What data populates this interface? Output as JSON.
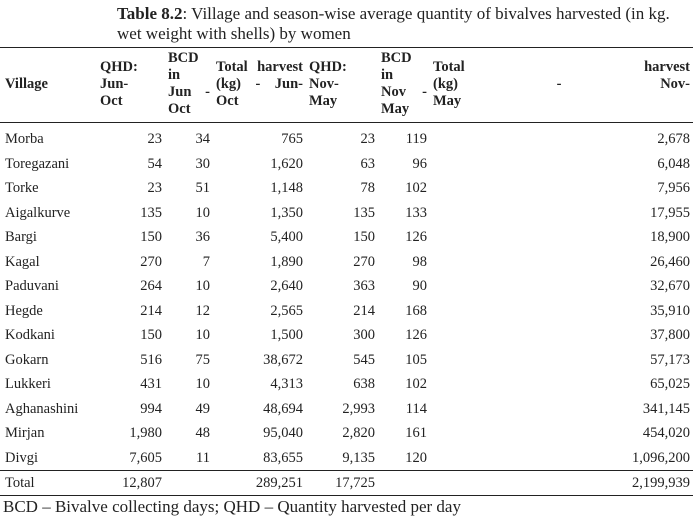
{
  "title": {
    "label": "Table 8.2",
    "text": ": Village and season-wise average quantity of bivalves harvested (in kg. wet weight with shells) by women"
  },
  "table": {
    "headers": [
      [
        "Village"
      ],
      [
        "QHD: Jun-",
        "Oct"
      ],
      [
        "BCD in",
        "Jun -",
        "Oct"
      ],
      [
        "Total harvest",
        "(kg) - Jun-Oct"
      ],
      [
        "QHD: Nov-",
        "May"
      ],
      [
        "BCD in",
        "Nov -",
        "May"
      ],
      [
        "Total harvest",
        "(kg) - Nov-",
        "May"
      ]
    ],
    "rows": [
      [
        "Morba",
        "23",
        "34",
        "765",
        "23",
        "119",
        "2,678"
      ],
      [
        "Toregazani",
        "54",
        "30",
        "1,620",
        "63",
        "96",
        "6,048"
      ],
      [
        "Torke",
        "23",
        "51",
        "1,148",
        "78",
        "102",
        "7,956"
      ],
      [
        "Aigalkurve",
        "135",
        "10",
        "1,350",
        "135",
        "133",
        "17,955"
      ],
      [
        "Bargi",
        "150",
        "36",
        "5,400",
        "150",
        "126",
        "18,900"
      ],
      [
        "Kagal",
        "270",
        "7",
        "1,890",
        "270",
        "98",
        "26,460"
      ],
      [
        "Paduvani",
        "264",
        "10",
        "2,640",
        "363",
        "90",
        "32,670"
      ],
      [
        "Hegde",
        "214",
        "12",
        "2,565",
        "214",
        "168",
        "35,910"
      ],
      [
        "Kodkani",
        "150",
        "10",
        "1,500",
        "300",
        "126",
        "37,800"
      ],
      [
        "Gokarn",
        "516",
        "75",
        "38,672",
        "545",
        "105",
        "57,173"
      ],
      [
        "Lukkeri",
        "431",
        "10",
        "4,313",
        "638",
        "102",
        "65,025"
      ],
      [
        "Aghanashini",
        "994",
        "49",
        "48,694",
        "2,993",
        "114",
        "341,145"
      ],
      [
        "Mirjan",
        "1,980",
        "48",
        "95,040",
        "2,820",
        "161",
        "454,020"
      ],
      [
        "Divgi",
        "7,605",
        "11",
        "83,655",
        "9,135",
        "120",
        "1,096,200"
      ]
    ],
    "total": [
      "Total",
      "12,807",
      "",
      "289,251",
      "17,725",
      "",
      "2,199,939"
    ]
  },
  "footnote": "BCD – Bivalve collecting days; QHD – Quantity harvested per day"
}
